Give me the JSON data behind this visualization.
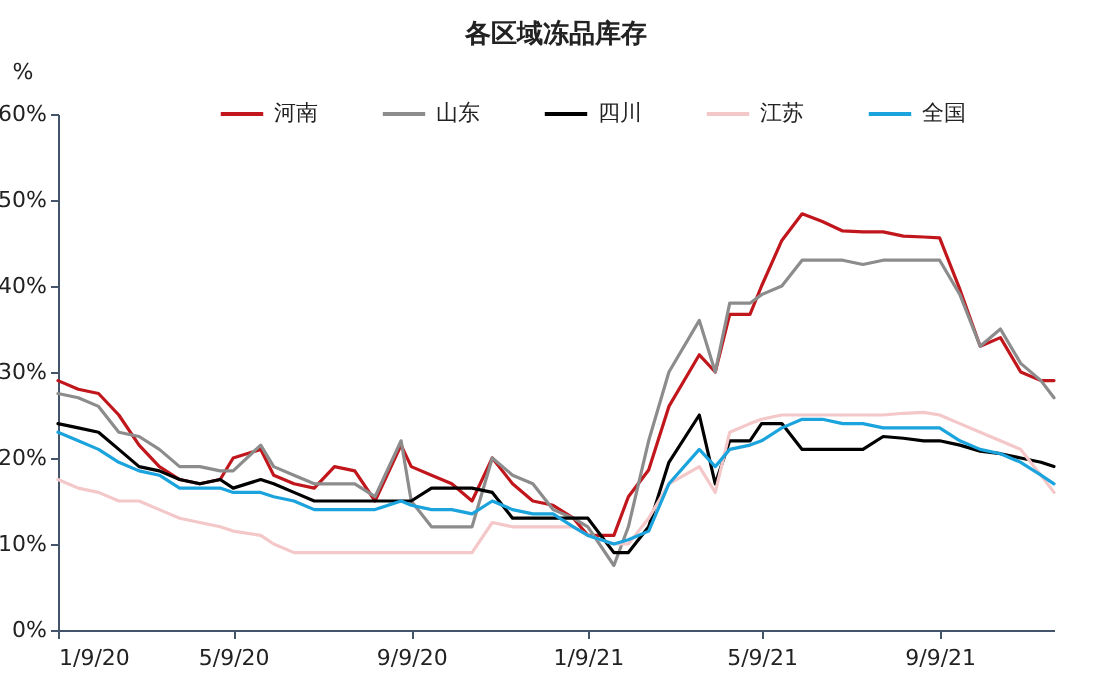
{
  "chart_data": {
    "type": "line",
    "title": "各区域冻品库存",
    "ylabel": "%",
    "x": [
      "2020-01-09",
      "2020-01-23",
      "2020-02-06",
      "2020-02-20",
      "2020-03-05",
      "2020-03-19",
      "2020-04-02",
      "2020-04-16",
      "2020-04-30",
      "2020-05-09",
      "2020-05-28",
      "2020-06-06",
      "2020-06-20",
      "2020-07-04",
      "2020-07-18",
      "2020-08-01",
      "2020-08-15",
      "2020-09-02",
      "2020-09-09",
      "2020-09-23",
      "2020-10-07",
      "2020-10-21",
      "2020-11-04",
      "2020-11-18",
      "2020-12-02",
      "2020-12-16",
      "2020-12-30",
      "2021-01-09",
      "2021-01-27",
      "2021-02-06",
      "2021-02-20",
      "2021-03-06",
      "2021-03-27",
      "2021-04-07",
      "2021-04-17",
      "2021-05-01",
      "2021-05-09",
      "2021-05-23",
      "2021-06-06",
      "2021-06-20",
      "2021-07-04",
      "2021-07-18",
      "2021-08-01",
      "2021-08-15",
      "2021-08-29",
      "2021-09-09",
      "2021-09-23",
      "2021-10-07",
      "2021-10-21",
      "2021-11-04",
      "2021-11-18",
      "2021-11-27"
    ],
    "series": [
      {
        "name": "河南",
        "color": "#c0161c",
        "values": [
          29,
          28,
          27.5,
          25,
          21.5,
          19,
          17.5,
          17,
          17.5,
          20,
          21,
          18,
          17,
          16.5,
          19,
          18.5,
          15,
          21.5,
          19,
          18,
          17,
          15,
          20,
          17,
          15,
          14.5,
          13,
          11,
          11,
          15.5,
          18.6,
          26,
          32,
          30,
          36.7,
          36.7,
          40,
          45.3,
          48.4,
          47.5,
          46.4,
          46.3,
          46.3,
          45.8,
          45.7,
          45.6,
          39.6,
          33,
          34,
          30,
          29,
          29
        ]
      },
      {
        "name": "山东",
        "color": "#8c8c8c",
        "values": [
          27.5,
          27,
          26,
          23,
          22.5,
          21,
          19,
          19,
          18.5,
          18.5,
          21.5,
          19,
          18,
          17,
          17,
          17,
          15.5,
          22,
          15,
          12,
          12,
          12,
          20,
          18,
          17,
          14,
          13,
          12,
          7.5,
          12,
          22,
          30,
          36,
          30,
          38,
          38,
          39,
          40,
          43,
          43,
          43,
          42.5,
          43,
          43,
          43,
          43,
          39,
          33,
          35,
          31,
          29,
          27
        ]
      },
      {
        "name": "四川",
        "color": "#000000",
        "values": [
          24,
          23.5,
          23,
          21,
          19,
          18.5,
          17.5,
          17,
          17.5,
          16.5,
          17.5,
          17,
          16,
          15,
          15,
          15,
          15,
          15,
          15,
          16.5,
          16.5,
          16.5,
          16,
          13,
          13,
          13,
          13,
          13,
          9,
          9,
          12,
          19.5,
          25,
          17,
          22,
          22,
          24,
          24,
          21,
          21,
          21,
          21,
          22.5,
          22.3,
          22,
          22,
          21.5,
          20.8,
          20.5,
          20,
          19.5,
          19
        ]
      },
      {
        "name": "江苏",
        "color": "#f4c7c9",
        "values": [
          17.5,
          16.5,
          16,
          15,
          15,
          14,
          13,
          12.5,
          12,
          11.5,
          11,
          10,
          9,
          9,
          9,
          9,
          9,
          9,
          9,
          9,
          9,
          9,
          12.5,
          12,
          12,
          12,
          12,
          11,
          10,
          10,
          13,
          17,
          19,
          16,
          23,
          24,
          24.5,
          25,
          25,
          25,
          25,
          25,
          25,
          25.2,
          25.3,
          25,
          24,
          23,
          22,
          21,
          18,
          16
        ]
      },
      {
        "name": "全国",
        "color": "#1aa3dc",
        "values": [
          23,
          22,
          21,
          19.5,
          18.5,
          18,
          16.5,
          16.5,
          16.5,
          16,
          16,
          15.5,
          15,
          14,
          14,
          14,
          14,
          15,
          14.5,
          14,
          14,
          13.5,
          15,
          14,
          13.5,
          13.5,
          12,
          11,
          10,
          10.5,
          11.5,
          17,
          21,
          19,
          21,
          21.5,
          22,
          23.5,
          24.5,
          24.5,
          24,
          24,
          23.5,
          23.5,
          23.5,
          23.5,
          22,
          21,
          20.5,
          19.5,
          18,
          17
        ]
      }
    ],
    "xlim": [
      "2020-01-09",
      "2021-11-27"
    ],
    "xticks": [
      {
        "value": "2020-01-09",
        "label": "1/9/20"
      },
      {
        "value": "2020-05-09",
        "label": "5/9/20"
      },
      {
        "value": "2020-09-09",
        "label": "9/9/20"
      },
      {
        "value": "2021-01-09",
        "label": "1/9/21"
      },
      {
        "value": "2021-05-09",
        "label": "5/9/21"
      },
      {
        "value": "2021-09-09",
        "label": "9/9/21"
      }
    ],
    "ylim": [
      0,
      60
    ],
    "yticks": [
      {
        "value": 0,
        "label": "0%"
      },
      {
        "value": 10,
        "label": "10%"
      },
      {
        "value": 20,
        "label": "20%"
      },
      {
        "value": 30,
        "label": "30%"
      },
      {
        "value": 40,
        "label": "40%"
      },
      {
        "value": 50,
        "label": "50%"
      },
      {
        "value": 60,
        "label": "60%"
      }
    ],
    "legend": "top",
    "grid": false,
    "marker": "none",
    "line_style": "solid"
  }
}
